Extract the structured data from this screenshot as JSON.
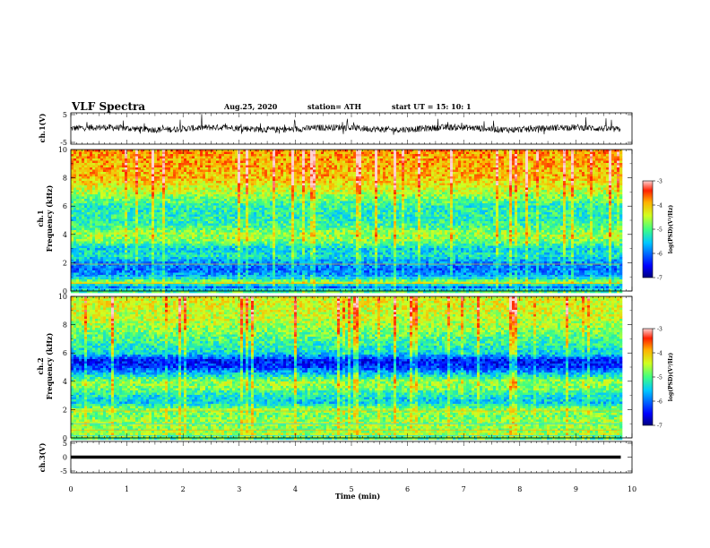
{
  "header": {
    "title": "VLF Spectra",
    "date": "Aug.25, 2020",
    "station": "station= ATH",
    "start": "start  UT =   15: 10: 1"
  },
  "chart_data": [
    {
      "type": "line",
      "panel": "waveform-ch1",
      "ylabel": "ch.1(V)",
      "ylim": [
        -5,
        5
      ],
      "yticks": [
        "5",
        "-5"
      ],
      "xlim": [
        0,
        10
      ],
      "description_level": "noisy signal fluctuating around 0 V, roughly between -1.5 and 2"
    },
    {
      "type": "heatmap",
      "panel": "spectrogram-ch1",
      "ylabel_top": "ch.1",
      "ylabel": "Frequency (kHz)",
      "ylim": [
        0,
        10
      ],
      "yticks": [
        "0",
        "2",
        "4",
        "6",
        "8",
        "10"
      ],
      "xlim": [
        0,
        9.8
      ],
      "colorbar": {
        "label": "log(PSD)(V²/Hz)",
        "range": [
          -7,
          -3
        ],
        "ticks": [
          "-3",
          "-4",
          "-5",
          "-6",
          "-7"
        ]
      },
      "profile_kHz": [
        0,
        0.3,
        0.6,
        1.0,
        1.5,
        2.0,
        2.5,
        3.0,
        3.5,
        4.0,
        4.5,
        5.0,
        6.0,
        7.0,
        8.0,
        9.0,
        10.0
      ],
      "profile_logpsd": [
        -5.0,
        -6.0,
        -4.5,
        -5.6,
        -6.0,
        -5.8,
        -5.3,
        -5.5,
        -4.8,
        -4.6,
        -5.0,
        -5.2,
        -5.2,
        -4.5,
        -4.0,
        -3.9,
        -3.8
      ]
    },
    {
      "type": "heatmap",
      "panel": "spectrogram-ch2",
      "ylabel_top": "ch.2",
      "ylabel": "Frequency (kHz)",
      "ylim": [
        0,
        10
      ],
      "yticks": [
        "0",
        "2",
        "4",
        "6",
        "8",
        "10"
      ],
      "xlim": [
        0,
        9.8
      ],
      "colorbar": {
        "label": "log(PSD)(V²/Hz)",
        "range": [
          -7,
          -3
        ],
        "ticks": [
          "-3",
          "-4",
          "-5",
          "-6",
          "-7"
        ]
      },
      "profile_kHz": [
        0,
        0.3,
        0.6,
        1.0,
        1.5,
        2.0,
        2.5,
        3.0,
        3.5,
        4.0,
        4.5,
        5.0,
        5.5,
        6.0,
        7.0,
        8.0,
        9.0,
        10.0
      ],
      "profile_logpsd": [
        -5.0,
        -4.5,
        -4.8,
        -4.6,
        -4.8,
        -4.7,
        -5.5,
        -5.3,
        -4.8,
        -4.7,
        -5.5,
        -6.3,
        -6.4,
        -5.4,
        -5.0,
        -4.6,
        -4.4,
        -4.3
      ]
    },
    {
      "type": "line",
      "panel": "waveform-ch3",
      "ylabel": "ch.3(V)",
      "ylim": [
        -5,
        5
      ],
      "yticks": [
        "5",
        "0",
        "-5"
      ],
      "xlim": [
        0,
        10
      ],
      "description_level": "flat thick band near 0 V"
    }
  ],
  "xaxis": {
    "label": "Time (min)",
    "ticks": [
      "0",
      "1",
      "2",
      "3",
      "4",
      "5",
      "6",
      "7",
      "8",
      "9",
      "10"
    ]
  }
}
